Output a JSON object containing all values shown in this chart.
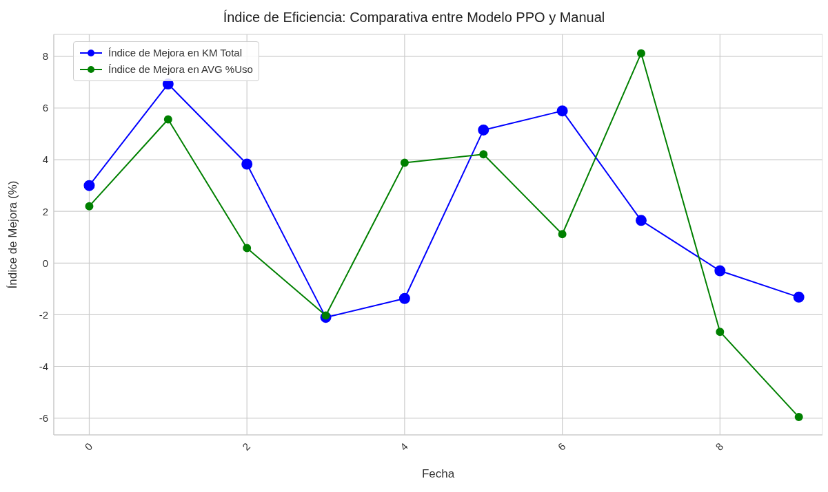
{
  "chart_data": {
    "type": "line",
    "title": "Índice de Eficiencia: Comparativa entre Modelo PPO y Manual",
    "xlabel": "Fecha",
    "ylabel": "Índice de Mejora (%)",
    "x": [
      0,
      1,
      2,
      3,
      4,
      5,
      6,
      7,
      8,
      9
    ],
    "series": [
      {
        "name": "Índice de Mejora en KM Total",
        "color": "#0000ff",
        "values": [
          3.0,
          6.93,
          3.83,
          -2.1,
          -1.37,
          5.15,
          5.89,
          1.65,
          -0.3,
          -1.32
        ]
      },
      {
        "name": "Índice de Mejora en AVG %Uso",
        "color": "#008000",
        "values": [
          2.2,
          5.56,
          0.58,
          -2.03,
          3.88,
          4.21,
          1.12,
          8.12,
          -2.66,
          -5.96
        ]
      }
    ],
    "xlim": [
      -0.45,
      9.3
    ],
    "ylim": [
      -6.65,
      8.85
    ],
    "xticks": [
      0,
      2,
      4,
      6,
      8
    ],
    "yticks": [
      -6,
      -4,
      -2,
      0,
      2,
      4,
      6,
      8
    ],
    "grid": true,
    "legend": "top left",
    "marker": "circle",
    "line_style": "solid"
  }
}
